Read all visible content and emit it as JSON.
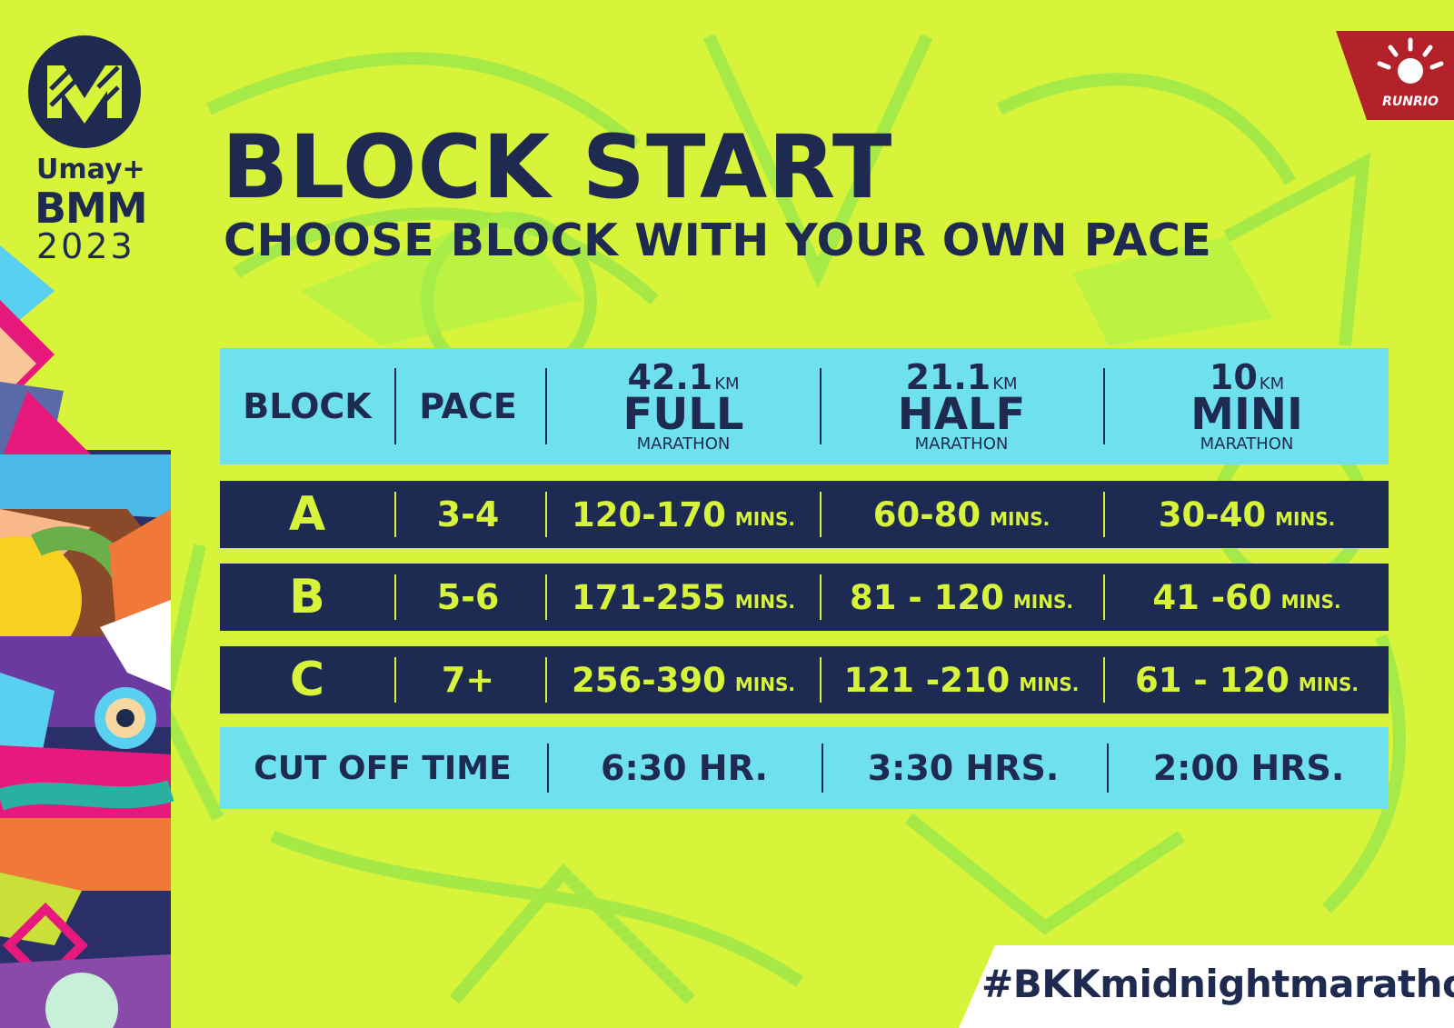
{
  "logo": {
    "line1": "Umay+",
    "line2": "BMM",
    "line3": "2023"
  },
  "sponsor": {
    "name": "RUNRIO"
  },
  "title": "BLOCK START",
  "subtitle": "CHOOSE BLOCK WITH YOUR OWN PACE",
  "table": {
    "headers": {
      "block": "BLOCK",
      "pace": "PACE",
      "distances": [
        {
          "km": "42.1",
          "unit": "KM",
          "name": "FULL",
          "sub": "MARATHON"
        },
        {
          "km": "21.1",
          "unit": "KM",
          "name": "HALF",
          "sub": "MARATHON"
        },
        {
          "km": "10",
          "unit": "KM",
          "name": "MINI",
          "sub": "MARATHON"
        }
      ]
    },
    "unit_label": "MINS.",
    "rows": [
      {
        "block": "A",
        "pace": "3-4",
        "full": "120-170",
        "half": "60-80",
        "mini": "30-40"
      },
      {
        "block": "B",
        "pace": "5-6",
        "full": "171-255",
        "half": "81 - 120",
        "mini": "41 -60"
      },
      {
        "block": "C",
        "pace": "7+",
        "full": "256-390",
        "half": "121 -210",
        "mini": "61 - 120"
      }
    ],
    "cutoff": {
      "label": "CUT OFF TIME",
      "full": "6:30 HR.",
      "half": "3:30 HRS.",
      "mini": "2:00 HRS."
    }
  },
  "hashtag": "#BKKmidnightmarathon",
  "colors": {
    "background": "#d8f43a",
    "navy": "#1e2a50",
    "cyan": "#6ee0ee",
    "sponsor_red": "#b3222a"
  }
}
